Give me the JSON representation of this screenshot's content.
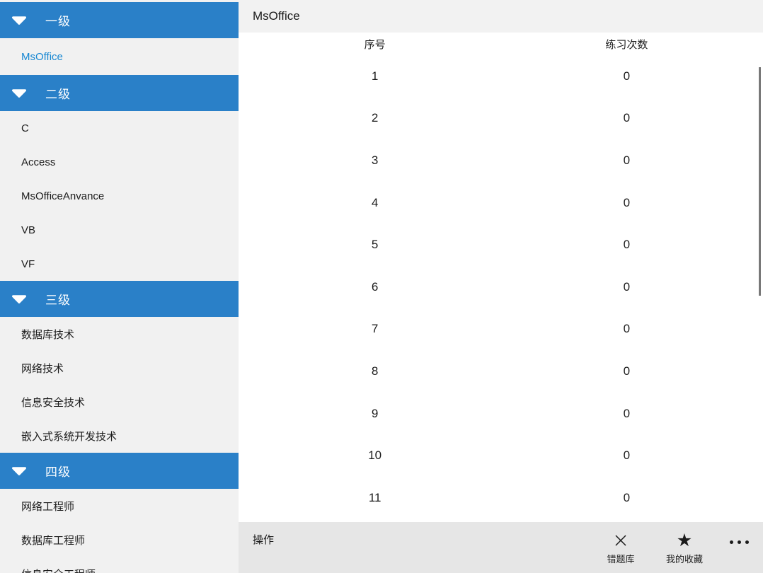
{
  "header": {
    "title": "MsOffice"
  },
  "sidebar": {
    "section_icon": "chevron-down-icon",
    "sections": [
      {
        "label": "一级",
        "items": [
          {
            "label": "MsOffice",
            "selected": true
          }
        ]
      },
      {
        "label": "二级",
        "items": [
          {
            "label": "C"
          },
          {
            "label": "Access"
          },
          {
            "label": "MsOfficeAnvance"
          },
          {
            "label": "VB"
          },
          {
            "label": "VF"
          }
        ]
      },
      {
        "label": "三级",
        "items": [
          {
            "label": "数据库技术"
          },
          {
            "label": "网络技术"
          },
          {
            "label": "信息安全技术"
          },
          {
            "label": "嵌入式系统开发技术"
          }
        ]
      },
      {
        "label": "四级",
        "items": [
          {
            "label": "网络工程师"
          },
          {
            "label": "数据库工程师"
          },
          {
            "label": "信息安全工程师"
          }
        ]
      }
    ]
  },
  "table": {
    "columns": [
      "序号",
      "练习次数"
    ],
    "rows": [
      {
        "serial": "1",
        "count": "0"
      },
      {
        "serial": "2",
        "count": "0"
      },
      {
        "serial": "3",
        "count": "0"
      },
      {
        "serial": "4",
        "count": "0"
      },
      {
        "serial": "5",
        "count": "0"
      },
      {
        "serial": "6",
        "count": "0"
      },
      {
        "serial": "7",
        "count": "0"
      },
      {
        "serial": "8",
        "count": "0"
      },
      {
        "serial": "9",
        "count": "0"
      },
      {
        "serial": "10",
        "count": "0"
      },
      {
        "serial": "11",
        "count": "0"
      }
    ]
  },
  "commandbar": {
    "label": "操作",
    "buttons": [
      {
        "name": "wrong-question-bank-button",
        "icon": "close-icon",
        "label": "错题库"
      },
      {
        "name": "my-favorites-button",
        "icon": "star-icon",
        "label": "我的收藏"
      }
    ],
    "more_icon": "ellipsis-icon"
  },
  "colors": {
    "accent": "#2A80C8",
    "selected_text": "#1787D2",
    "sidebar_bg": "#F1F1F1",
    "titlebar_bg": "#F2F2F2",
    "commandbar_bg": "#E6E6E6",
    "text": "#1B1B1B",
    "scrollbar": "#787878"
  }
}
